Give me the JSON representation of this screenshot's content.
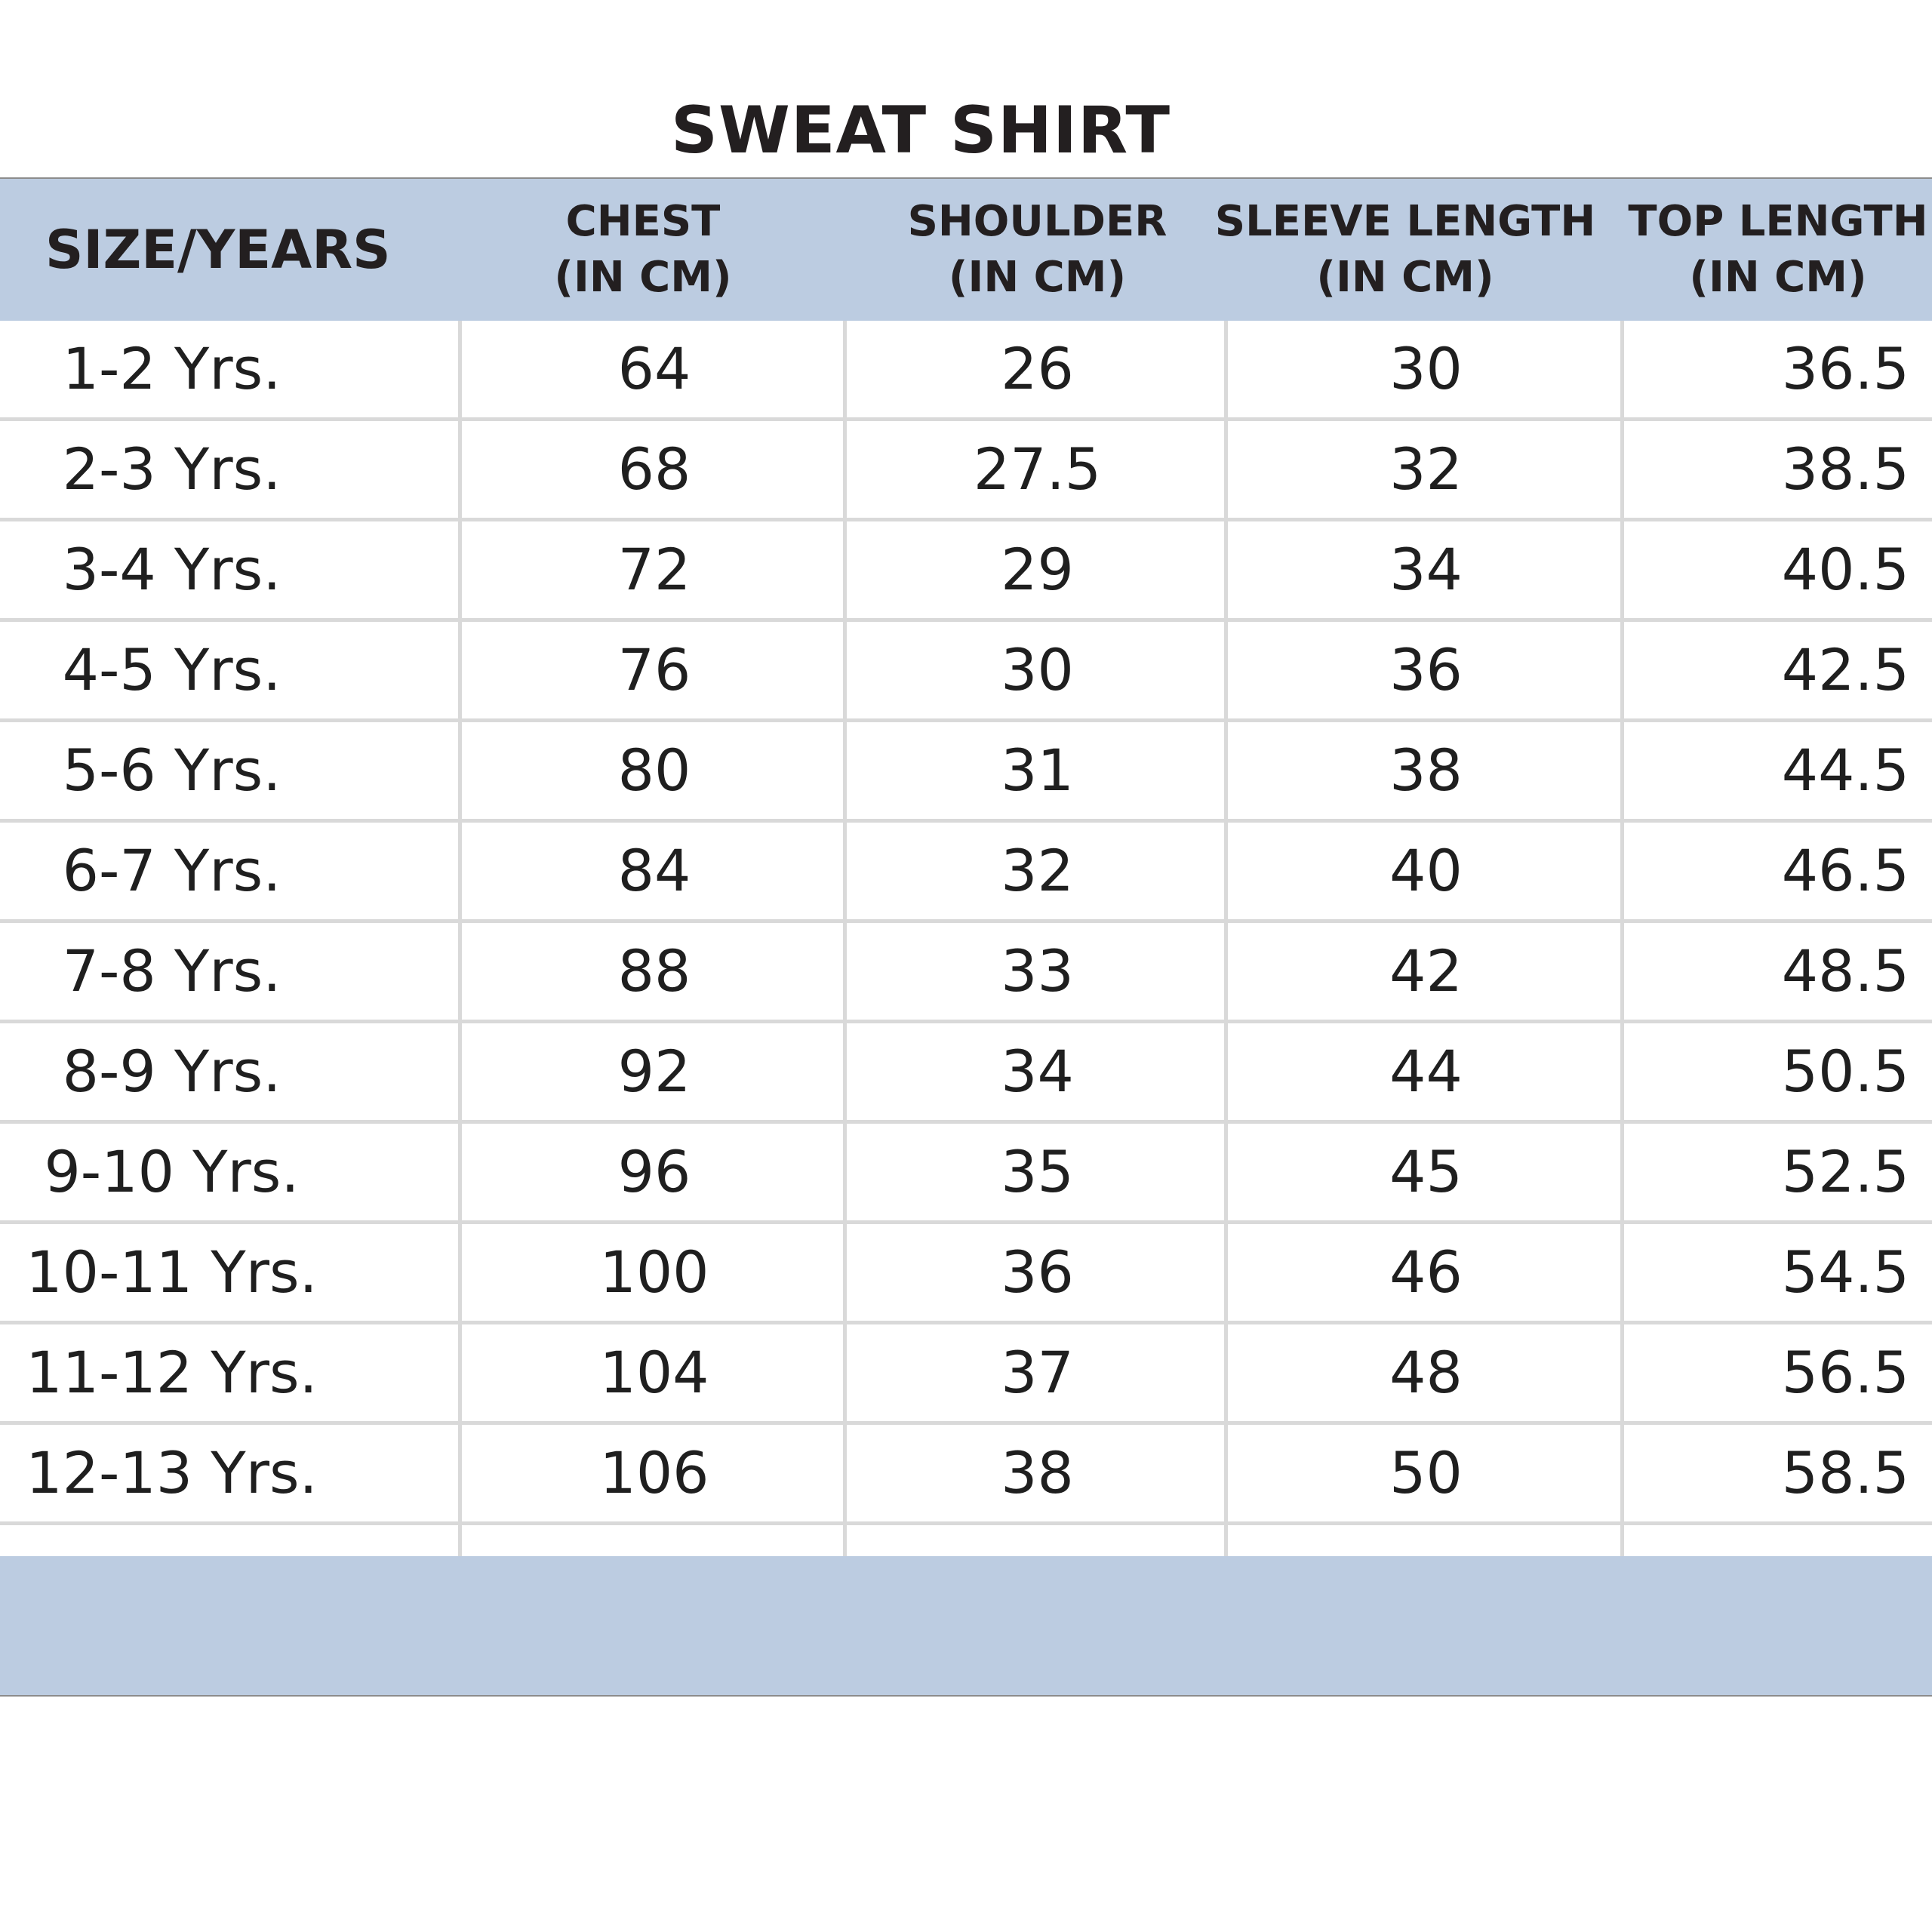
{
  "title": "SWEAT SHIRT",
  "header": {
    "size": "SIZE/YEARS",
    "chest": [
      "CHEST",
      "(IN CM)"
    ],
    "shoulder": [
      "SHOULDER",
      "(IN CM)"
    ],
    "sleeve": [
      "SLEEVE LENGTH",
      "(IN CM)"
    ],
    "top": [
      "TOP LENGTH",
      "(IN CM)"
    ]
  },
  "rows": [
    {
      "size": "1-2 Yrs.",
      "chest": "64",
      "shoulder": "26",
      "sleeve": "30",
      "top": "36.5"
    },
    {
      "size": "2-3 Yrs.",
      "chest": "68",
      "shoulder": "27.5",
      "sleeve": "32",
      "top": "38.5"
    },
    {
      "size": "3-4 Yrs.",
      "chest": "72",
      "shoulder": "29",
      "sleeve": "34",
      "top": "40.5"
    },
    {
      "size": "4-5 Yrs.",
      "chest": "76",
      "shoulder": "30",
      "sleeve": "36",
      "top": "42.5"
    },
    {
      "size": "5-6 Yrs.",
      "chest": "80",
      "shoulder": "31",
      "sleeve": "38",
      "top": "44.5"
    },
    {
      "size": "6-7 Yrs.",
      "chest": "84",
      "shoulder": "32",
      "sleeve": "40",
      "top": "46.5"
    },
    {
      "size": "7-8 Yrs.",
      "chest": "88",
      "shoulder": "33",
      "sleeve": "42",
      "top": "48.5"
    },
    {
      "size": "8-9 Yrs.",
      "chest": "92",
      "shoulder": "34",
      "sleeve": "44",
      "top": "50.5"
    },
    {
      "size": "9-10 Yrs.",
      "chest": "96",
      "shoulder": "35",
      "sleeve": "45",
      "top": "52.5"
    },
    {
      "size": "10-11 Yrs.",
      "chest": "100",
      "shoulder": "36",
      "sleeve": "46",
      "top": "54.5"
    },
    {
      "size": "11-12 Yrs.",
      "chest": "104",
      "shoulder": "37",
      "sleeve": "48",
      "top": "56.5"
    },
    {
      "size": "12-13 Yrs.",
      "chest": "106",
      "shoulder": "38",
      "sleeve": "50",
      "top": "58.5"
    }
  ],
  "colors": {
    "header_band": "#bccce1",
    "grid_line": "#d9d9d9",
    "text": "#1f1f1f"
  }
}
